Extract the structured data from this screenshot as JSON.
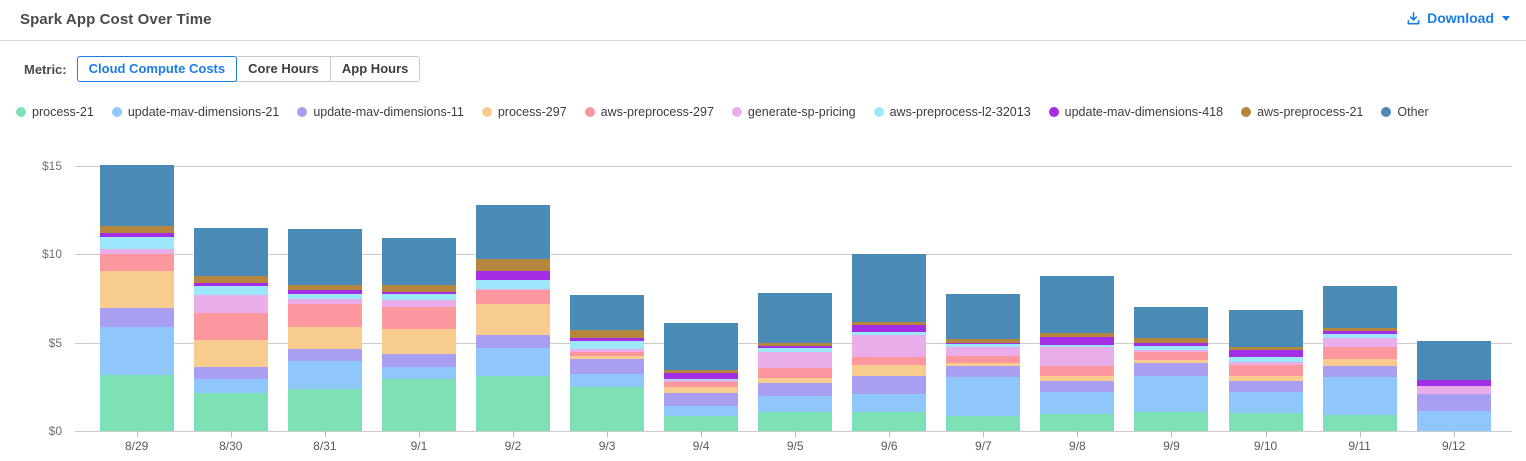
{
  "header": {
    "title": "Spark App Cost Over Time",
    "download_label": "Download"
  },
  "metric": {
    "label": "Metric:",
    "options": [
      {
        "label": "Cloud Compute Costs",
        "selected": true
      },
      {
        "label": "Core Hours",
        "selected": false
      },
      {
        "label": "App Hours",
        "selected": false
      }
    ]
  },
  "chart_data": {
    "type": "bar",
    "stacked": true,
    "title": "Spark App Cost Over Time",
    "ylabel": "Cloud Compute Costs ($)",
    "xlabel": "",
    "ylim": [
      0,
      15
    ],
    "grid": true,
    "legend_position": "top",
    "y_axis": {
      "ticks": [
        {
          "value": 0,
          "label": "$0"
        },
        {
          "value": 5,
          "label": "$5"
        },
        {
          "value": 10,
          "label": "$10"
        },
        {
          "value": 15,
          "label": "$15"
        }
      ]
    },
    "categories": [
      "8/29",
      "8/30",
      "8/31",
      "9/1",
      "9/2",
      "9/3",
      "9/4",
      "9/5",
      "9/6",
      "9/7",
      "9/8",
      "9/9",
      "9/10",
      "9/11",
      "9/12"
    ],
    "series": [
      {
        "name": "process-21",
        "color": "#7de1b5",
        "values": [
          3.14,
          2.15,
          2.38,
          2.94,
          3.13,
          2.47,
          0.84,
          1.06,
          1.06,
          0.84,
          0.94,
          1.07,
          1.03,
          0.9,
          0.0
        ]
      },
      {
        "name": "update-mav-dimensions-21",
        "color": "#90c7fa",
        "values": [
          2.74,
          0.8,
          1.59,
          0.67,
          1.56,
          0.75,
          0.56,
          0.91,
          1.05,
          2.19,
          1.26,
          2.06,
          1.16,
          2.16,
          1.12
        ]
      },
      {
        "name": "update-mav-dimensions-11",
        "color": "#a89ff2",
        "values": [
          1.07,
          0.66,
          0.67,
          0.75,
          0.75,
          0.84,
          0.75,
          0.77,
          1.0,
          0.62,
          0.62,
          0.71,
          0.62,
          0.6,
          0.97
        ]
      },
      {
        "name": "process-297",
        "color": "#f8cb8e",
        "values": [
          2.09,
          1.54,
          1.25,
          1.41,
          1.73,
          0.19,
          0.32,
          0.23,
          0.61,
          0.19,
          0.28,
          0.19,
          0.32,
          0.41,
          0.0
        ]
      },
      {
        "name": "aws-preprocess-297",
        "color": "#fb979d",
        "values": [
          0.95,
          1.52,
          1.31,
          1.25,
          0.81,
          0.21,
          0.3,
          0.62,
          0.44,
          0.41,
          0.56,
          0.41,
          0.62,
          0.68,
          0.0
        ]
      },
      {
        "name": "generate-sp-pricing",
        "color": "#e9aeea",
        "values": [
          0.32,
          1.03,
          0.26,
          0.37,
          0.05,
          0.17,
          0.09,
          0.89,
          1.24,
          0.52,
          1.07,
          0.15,
          0.13,
          0.51,
          0.43
        ]
      },
      {
        "name": "aws-preprocess-l2-32013",
        "color": "#9de7fa",
        "values": [
          0.63,
          0.52,
          0.26,
          0.34,
          0.52,
          0.43,
          0.07,
          0.19,
          0.22,
          0.13,
          0.15,
          0.19,
          0.28,
          0.22,
          0.0
        ]
      },
      {
        "name": "update-mav-dimensions-418",
        "color": "#a32ee6",
        "values": [
          0.23,
          0.17,
          0.26,
          0.15,
          0.51,
          0.22,
          0.37,
          0.11,
          0.38,
          0.09,
          0.41,
          0.22,
          0.43,
          0.15,
          0.37
        ]
      },
      {
        "name": "aws-preprocess-21",
        "color": "#b5873e",
        "values": [
          0.42,
          0.38,
          0.26,
          0.36,
          0.66,
          0.43,
          0.15,
          0.17,
          0.19,
          0.24,
          0.24,
          0.28,
          0.15,
          0.22,
          0.0
        ]
      },
      {
        "name": "Other",
        "color": "#4a8ab7",
        "values": [
          3.42,
          2.72,
          3.2,
          2.66,
          3.04,
          1.97,
          2.66,
          2.87,
          3.8,
          2.49,
          3.22,
          1.74,
          2.1,
          2.34,
          2.19
        ]
      }
    ],
    "totals": [
      15.01,
      11.49,
      11.44,
      10.9,
      12.76,
      7.68,
      6.11,
      7.82,
      9.99,
      7.72,
      8.75,
      7.02,
      6.84,
      8.19,
      5.08
    ]
  }
}
